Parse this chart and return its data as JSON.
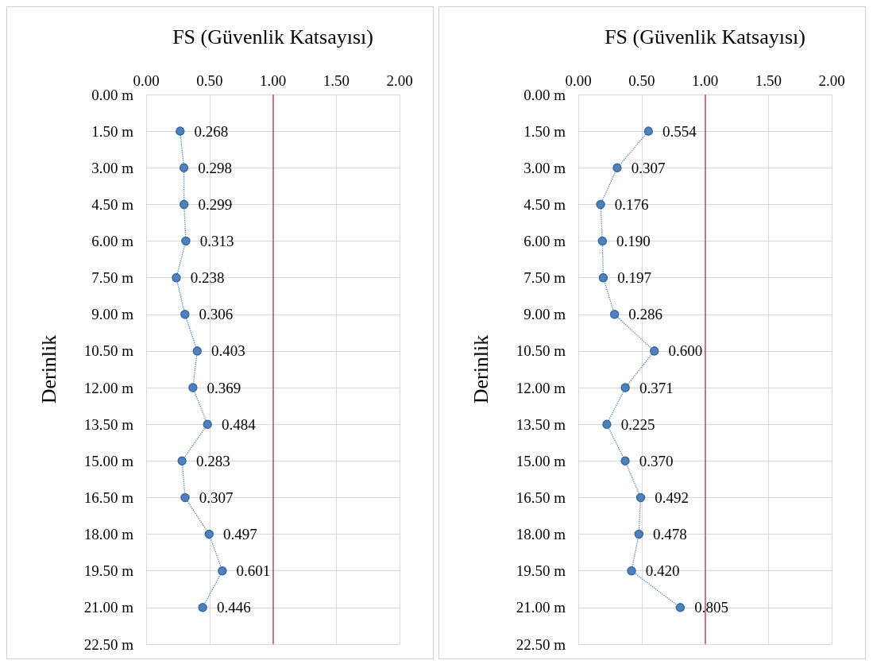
{
  "chart_data": [
    {
      "type": "line",
      "orientation": "horizontal",
      "xlabel": "FS (Güvenlik Katsayısı)",
      "ylabel": "Derinlik",
      "xlim": [
        0,
        2
      ],
      "xticks": [
        {
          "value": 0,
          "label": "0.00"
        },
        {
          "value": 0.5,
          "label": "0.50"
        },
        {
          "value": 1,
          "label": "1.00"
        },
        {
          "value": 1.5,
          "label": "1.50"
        },
        {
          "value": 2,
          "label": "2.00"
        }
      ],
      "categories": [
        "0.00 m",
        "1.50 m",
        "3.00 m",
        "4.50 m",
        "6.00 m",
        "7.50 m",
        "9.00 m",
        "10.50 m",
        "12.00 m",
        "13.50 m",
        "15.00 m",
        "16.50 m",
        "18.00 m",
        "19.50 m",
        "21.00 m",
        "22.50 m"
      ],
      "grid": true,
      "marker": "circle",
      "line_style": "dotted",
      "ref_lines": [
        {
          "axis": "x",
          "value": 1,
          "label": null,
          "color": "#c0504d"
        }
      ],
      "series": [
        {
          "color": "#4f81bd",
          "values": [
            null,
            0.268,
            0.298,
            0.299,
            0.313,
            0.238,
            0.306,
            0.403,
            0.369,
            0.484,
            0.283,
            0.307,
            0.497,
            0.601,
            0.446,
            null
          ],
          "value_labels": [
            null,
            "0.268",
            "0.298",
            "0.299",
            "0.313",
            "0.238",
            "0.306",
            "0.403",
            "0.369",
            "0.484",
            "0.283",
            "0.307",
            "0.497",
            "0.601",
            "0.446",
            null
          ]
        }
      ]
    },
    {
      "type": "line",
      "orientation": "horizontal",
      "xlabel": "FS (Güvenlik Katsayısı)",
      "ylabel": "Derinlik",
      "xlim": [
        0,
        2
      ],
      "xticks": [
        {
          "value": 0,
          "label": "0.00"
        },
        {
          "value": 0.5,
          "label": "0.50"
        },
        {
          "value": 1,
          "label": "1.00"
        },
        {
          "value": 1.5,
          "label": "1.50"
        },
        {
          "value": 2,
          "label": "2.00"
        }
      ],
      "categories": [
        "0.00 m",
        "1.50 m",
        "3.00 m",
        "4.50 m",
        "6.00 m",
        "7.50 m",
        "9.00 m",
        "10.50 m",
        "12.00 m",
        "13.50 m",
        "15.00 m",
        "16.50 m",
        "18.00 m",
        "19.50 m",
        "21.00 m",
        "22.50 m"
      ],
      "grid": true,
      "marker": "circle",
      "line_style": "dotted",
      "ref_lines": [
        {
          "axis": "x",
          "value": 1,
          "label": null,
          "color": "#c0504d"
        }
      ],
      "series": [
        {
          "color": "#4f81bd",
          "values": [
            null,
            0.554,
            0.307,
            0.176,
            0.19,
            0.197,
            0.286,
            0.6,
            0.371,
            0.225,
            0.37,
            0.492,
            0.478,
            0.42,
            0.805,
            null
          ],
          "value_labels": [
            null,
            "0.554",
            "0.307",
            "0.176",
            "0.190",
            "0.197",
            "0.286",
            "0.600",
            "0.371",
            "0.225",
            "0.370",
            "0.492",
            "0.478",
            "0.420",
            "0.805",
            null
          ]
        }
      ]
    }
  ]
}
